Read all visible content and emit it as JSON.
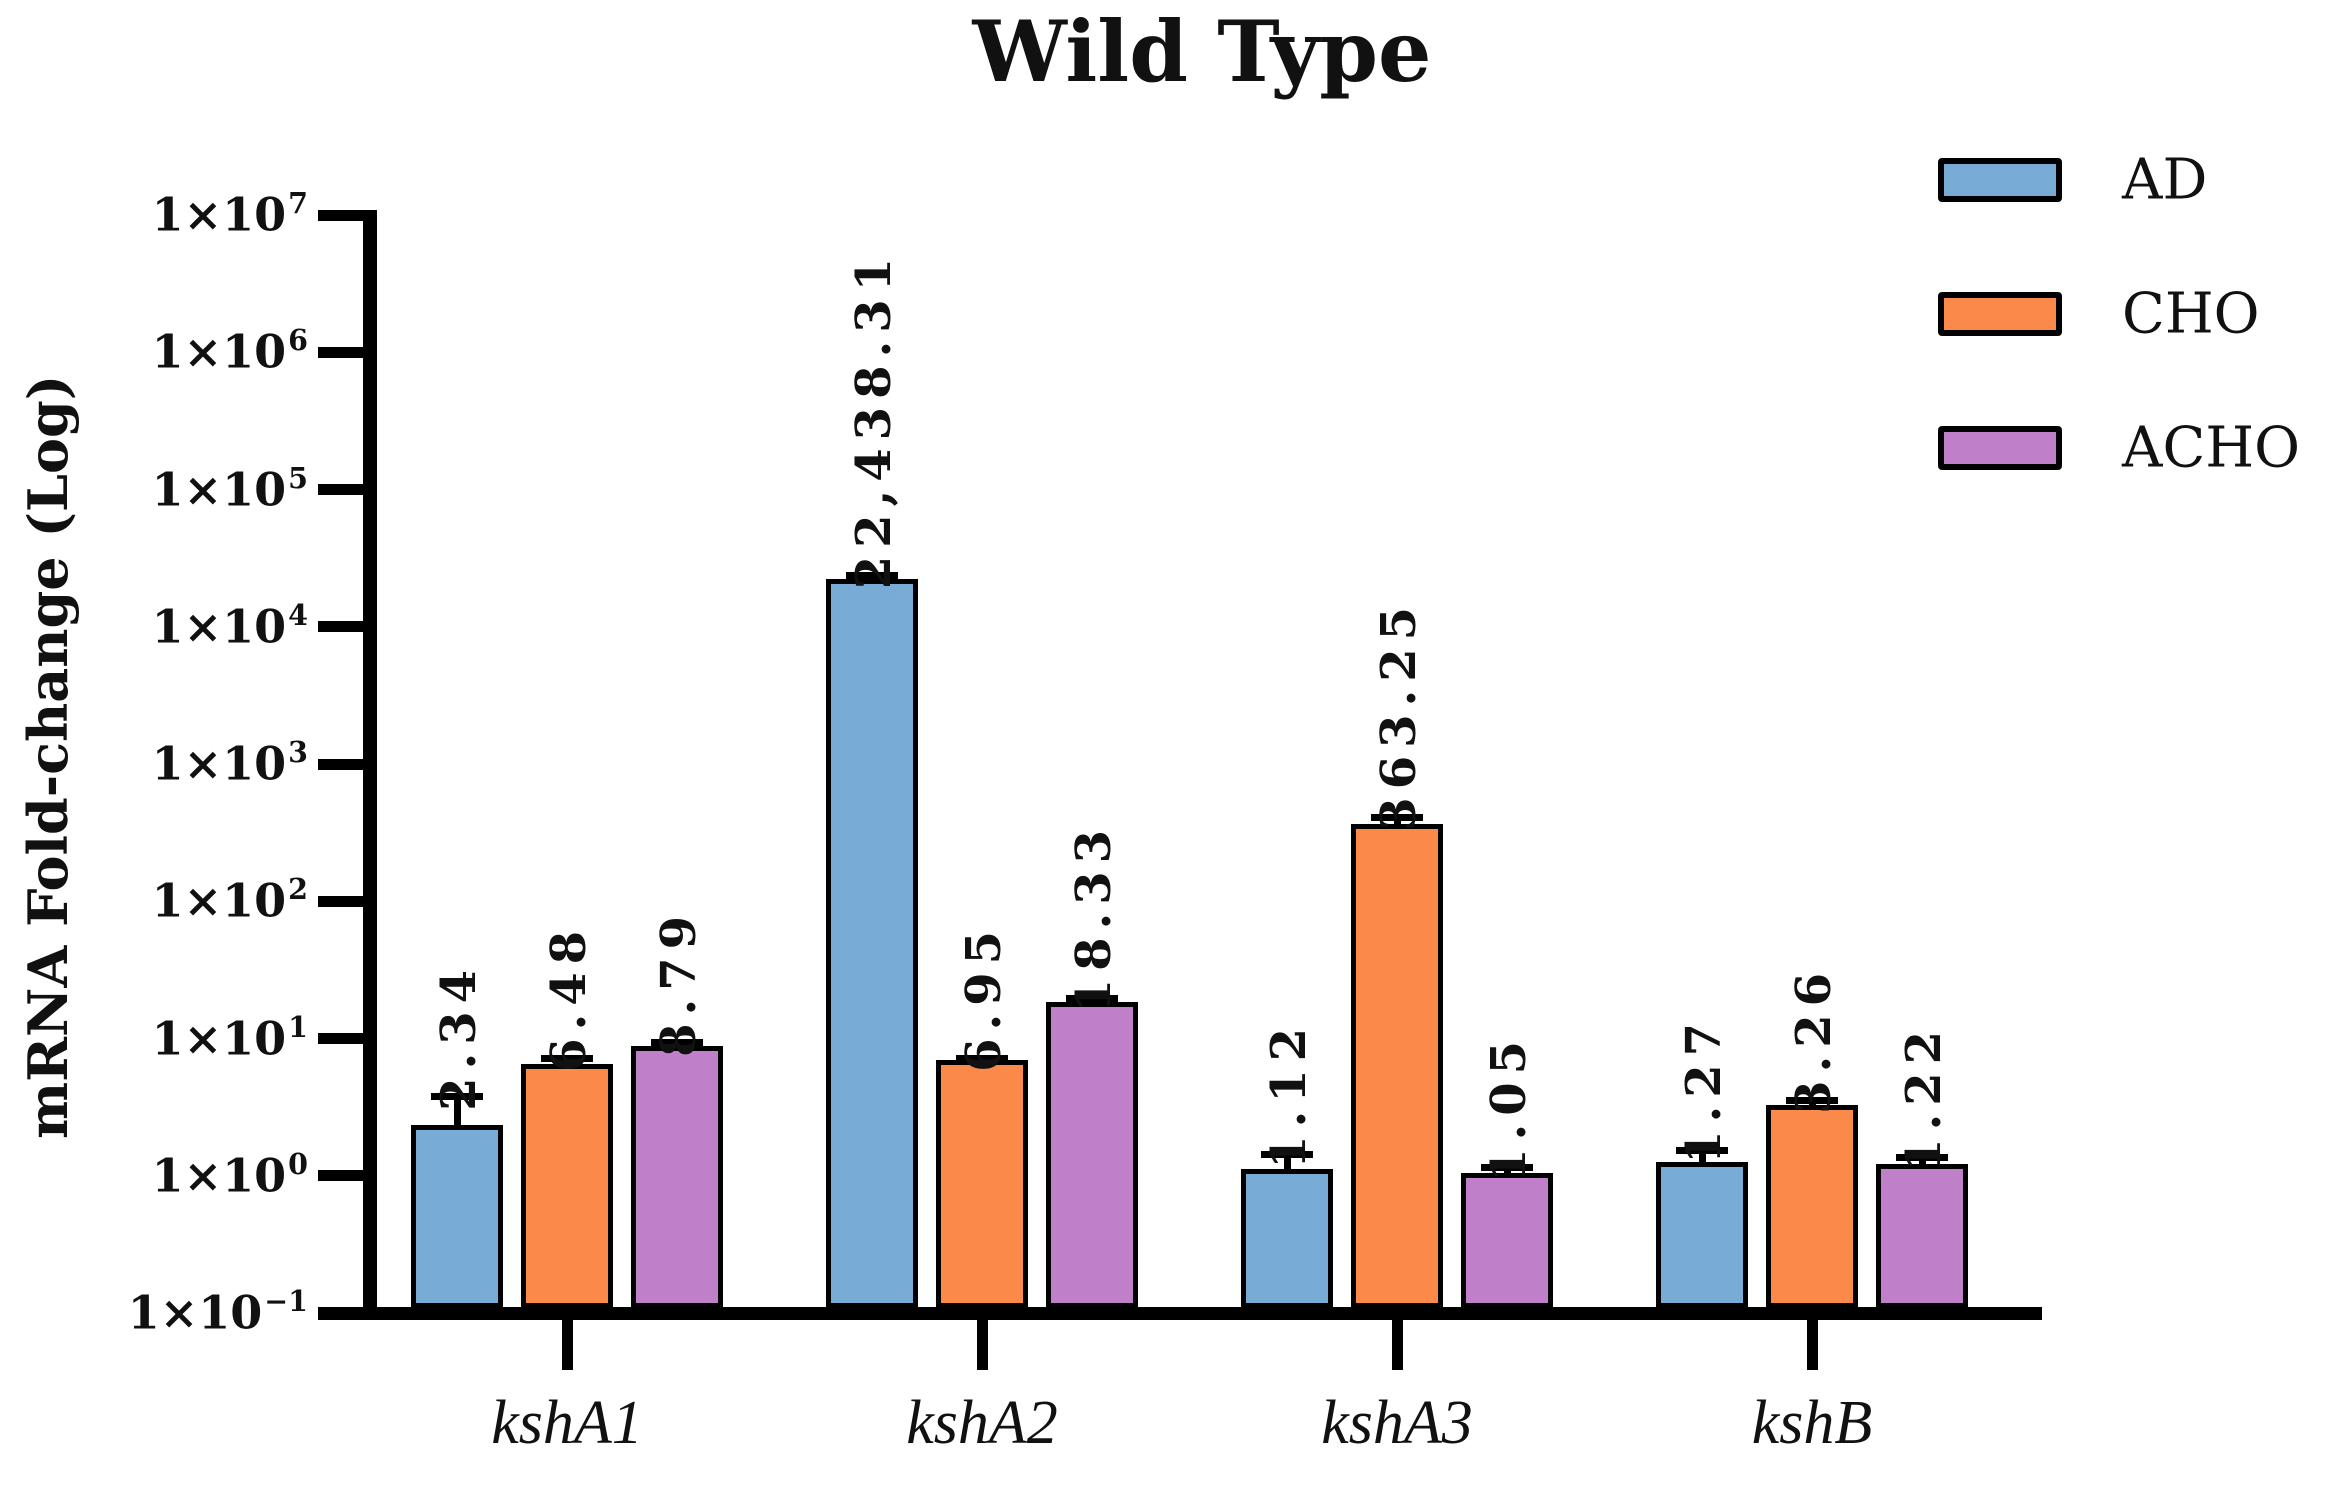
{
  "title": "Wild Type",
  "y_axis": {
    "title": "mRNA Fold-change (Log)",
    "tick_mantissa": "1×10",
    "tick_exponents": [
      "7",
      "6",
      "5",
      "4",
      "3",
      "2",
      "1",
      "0",
      "−1"
    ]
  },
  "x_axis": {
    "categories": [
      "kshA1",
      "kshA2",
      "kshA3",
      "kshB"
    ]
  },
  "legend": {
    "items": [
      {
        "label": "AD",
        "color": "#79ABD7"
      },
      {
        "label": "CHO",
        "color": "#FB8A4A"
      },
      {
        "label": "ACHO",
        "color": "#C07FC9"
      }
    ]
  },
  "chart_data": {
    "type": "bar",
    "y_scale": "log10",
    "title": "Wild Type",
    "xlabel": "",
    "ylabel": "mRNA Fold-change (Log)",
    "ylim": [
      0.1,
      10000000
    ],
    "grid": false,
    "legend_position": "top-right",
    "error_bars": "upper-only",
    "categories": [
      "kshA1",
      "kshA2",
      "kshA3",
      "kshB"
    ],
    "series": [
      {
        "name": "AD",
        "color": "#79ABD7",
        "values": [
          2.34,
          22438.31,
          1.12,
          1.27
        ],
        "value_labels": [
          "2.34",
          "22,438.31",
          "1.12",
          "1.27"
        ],
        "error_upper_approx": [
          3.75,
          23800,
          1.42,
          1.54
        ]
      },
      {
        "name": "CHO",
        "color": "#FB8A4A",
        "values": [
          6.48,
          6.95,
          363.25,
          3.26
        ],
        "value_labels": [
          "6.48",
          "6.95",
          "363.25",
          "3.26"
        ],
        "error_upper_approx": [
          7.2,
          7.2,
          410,
          3.56
        ]
      },
      {
        "name": "ACHO",
        "color": "#C07FC9",
        "values": [
          8.79,
          18.33,
          1.05,
          1.22
        ],
        "value_labels": [
          "8.79",
          "18.33",
          "1.05",
          "1.22"
        ],
        "error_upper_approx": [
          9.3,
          19.7,
          1.15,
          1.35
        ]
      }
    ]
  }
}
